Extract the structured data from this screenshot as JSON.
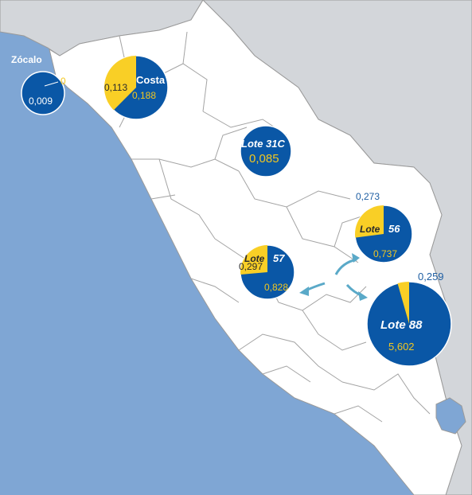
{
  "colors": {
    "ocean": "#7fa6d4",
    "neighbor": "#d3d6da",
    "land": "#ffffff",
    "border": "#9a9a9a",
    "pie_blue": "#0a57a6",
    "pie_yellow": "#f9cf26",
    "arrow": "#5aa9c8"
  },
  "fields": {
    "zocalo": {
      "name": "Zócalo",
      "yellow_label": "0",
      "blue_label": "0,009",
      "yellow_value": 0,
      "blue_value": 0.009
    },
    "costa": {
      "name": "Costa",
      "yellow_label": "0,113",
      "blue_label": "0,188",
      "yellow_value": 0.113,
      "blue_value": 0.188
    },
    "lote31c": {
      "name": "Lote 31C",
      "blue_label": "0,085",
      "yellow_value": 0,
      "blue_value": 0.085
    },
    "lote56": {
      "name_part1": "Lote",
      "name_part2": "56",
      "yellow_label": "0,273",
      "blue_label": "0,737",
      "yellow_value": 0.273,
      "blue_value": 0.737
    },
    "lote57": {
      "name_part1": "Lote",
      "name_part2": "57",
      "yellow_label": "0,297",
      "blue_label": "0,828",
      "yellow_value": 0.297,
      "blue_value": 0.828
    },
    "lote88": {
      "name": "Lote 88",
      "yellow_label": "0,259",
      "blue_label": "5,602",
      "yellow_value": 0.259,
      "blue_value": 5.602
    }
  }
}
